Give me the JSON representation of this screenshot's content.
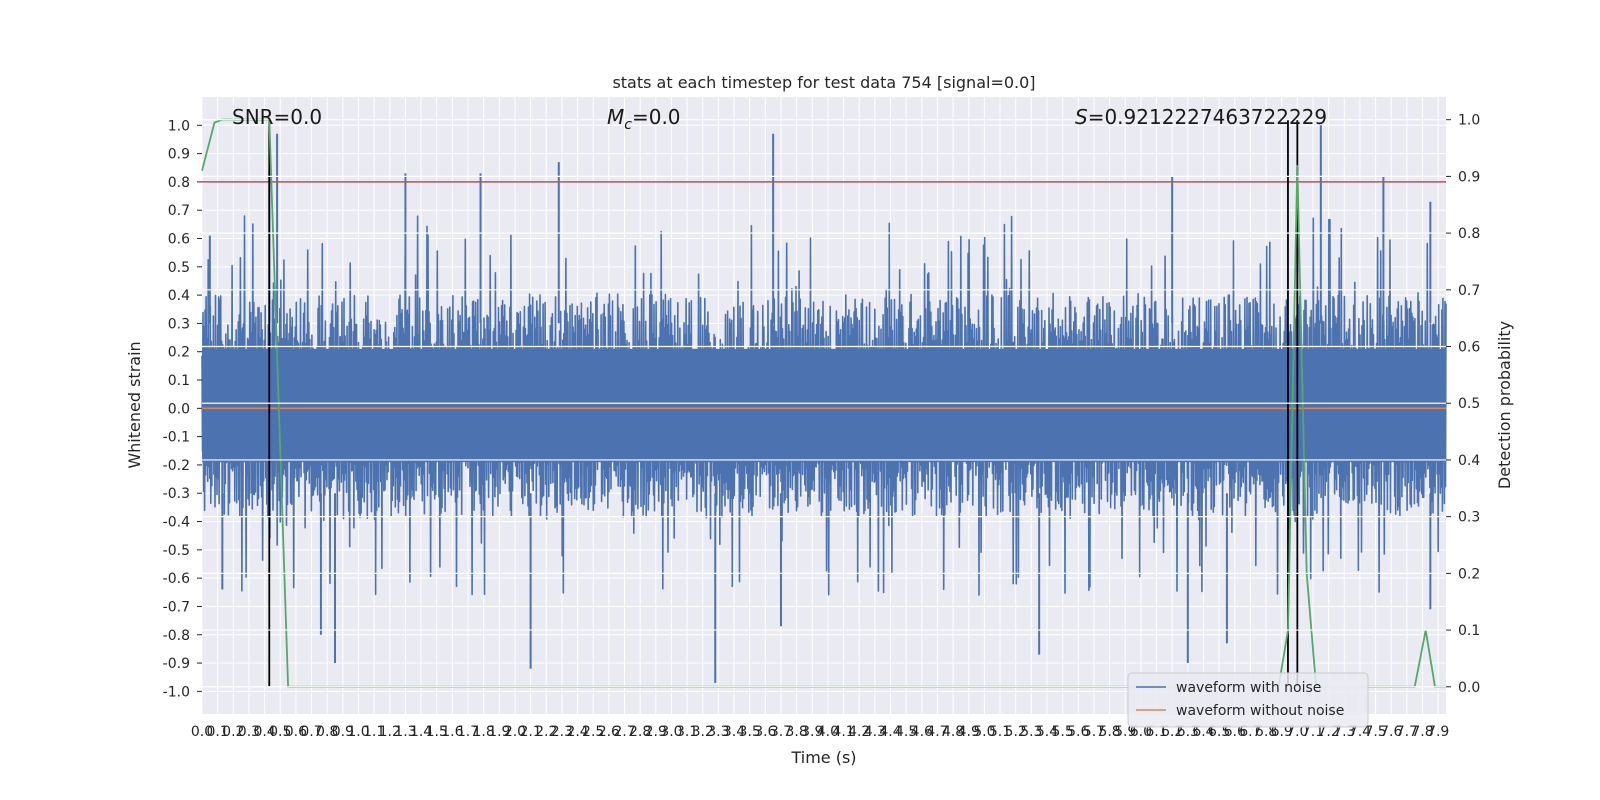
{
  "chart_data": {
    "type": "line",
    "title": "stats at each timestep for test data 754 [signal=0.0]",
    "xlabel": "Time (s)",
    "ylabel_left": "Whitened strain",
    "ylabel_right": "Detection probability",
    "xlim": [
      0.0,
      7.95
    ],
    "ylim_left": [
      -1.08,
      1.1
    ],
    "ylim_right": [
      -0.048,
      1.04
    ],
    "x_ticks": [
      "0.0",
      "0.1",
      "0.2",
      "0.3",
      "0.4",
      "0.5",
      "0.6",
      "0.7",
      "0.8",
      "0.9",
      "1.0",
      "1.1",
      "1.2",
      "1.3",
      "1.4",
      "1.5",
      "1.6",
      "1.7",
      "1.8",
      "1.9",
      "2.0",
      "2.1",
      "2.2",
      "2.3",
      "2.4",
      "2.5",
      "2.6",
      "2.7",
      "2.8",
      "2.9",
      "3.0",
      "3.1",
      "3.2",
      "3.3",
      "3.4",
      "3.5",
      "3.6",
      "3.7",
      "3.8",
      "3.9",
      "4.0",
      "4.1",
      "4.2",
      "4.3",
      "4.4",
      "4.5",
      "4.6",
      "4.7",
      "4.8",
      "4.9",
      "5.0",
      "5.1",
      "5.2",
      "5.3",
      "5.4",
      "5.5",
      "5.6",
      "5.7",
      "5.8",
      "5.9",
      "6.0",
      "6.1",
      "6.2",
      "6.3",
      "6.4",
      "6.5",
      "6.6",
      "6.7",
      "6.8",
      "6.9",
      "7.0",
      "7.1",
      "7.2",
      "7.3",
      "7.4",
      "7.5",
      "7.6",
      "7.7",
      "7.8",
      "7.9"
    ],
    "y_ticks_left": [
      "-1.0",
      "-0.9",
      "-0.8",
      "-0.7",
      "-0.6",
      "-0.5",
      "-0.4",
      "-0.3",
      "-0.2",
      "-0.1",
      "0.0",
      "0.1",
      "0.2",
      "0.3",
      "0.4",
      "0.5",
      "0.6",
      "0.7",
      "0.8",
      "0.9",
      "1.0"
    ],
    "y_ticks_right": [
      "0.0",
      "0.1",
      "0.2",
      "0.3",
      "0.4",
      "0.5",
      "0.6",
      "0.7",
      "0.8",
      "0.9",
      "1.0"
    ],
    "grid": true,
    "legend_position": "lower-right",
    "colors": {
      "background": "#eaeaf2",
      "grid": "#ffffff",
      "waveform_noise": "#4c72b0",
      "waveform_clean": "#dd8452",
      "detection": "#55a868",
      "threshold": "#c44e52",
      "markers": "#000000"
    },
    "annotations": {
      "snr": "SNR=0.0",
      "mc_symbol": "M",
      "mc_sub": "c",
      "mc_value": "=0.0",
      "s_symbol": "S",
      "s_value": "=0.9212227463722229"
    },
    "series": [
      {
        "name": "waveform with noise",
        "axis": "left",
        "style": "noise-band",
        "envelope_upper": [
          0.4,
          0.4,
          0.4,
          0.41,
          0.4,
          0.39,
          0.4,
          0.41,
          0.4,
          0.4,
          0.4
        ],
        "envelope_lower": [
          -0.38,
          -0.4,
          -0.38,
          -0.38,
          -0.39,
          -0.38,
          -0.38,
          -0.39,
          -0.38,
          -0.38,
          -0.38
        ],
        "peaks": [
          {
            "x": 0.05,
            "y": 0.61
          },
          {
            "x": 0.43,
            "y": 0.84
          },
          {
            "x": 0.48,
            "y": 0.97
          },
          {
            "x": 1.3,
            "y": 0.83
          },
          {
            "x": 1.78,
            "y": 0.83
          },
          {
            "x": 2.28,
            "y": 0.87
          },
          {
            "x": 3.65,
            "y": 0.97
          },
          {
            "x": 6.2,
            "y": 0.82
          },
          {
            "x": 7.0,
            "y": 0.85
          },
          {
            "x": 7.15,
            "y": 1.0
          },
          {
            "x": 7.55,
            "y": 0.82
          },
          {
            "x": 7.85,
            "y": 0.73
          },
          {
            "x": 0.13,
            "y": -0.64
          },
          {
            "x": 0.76,
            "y": -0.8
          },
          {
            "x": 0.85,
            "y": -0.9
          },
          {
            "x": 2.1,
            "y": -0.92
          },
          {
            "x": 3.28,
            "y": -0.97
          },
          {
            "x": 3.7,
            "y": -0.77
          },
          {
            "x": 5.35,
            "y": -0.87
          },
          {
            "x": 6.3,
            "y": -0.9
          },
          {
            "x": 6.55,
            "y": -0.83
          },
          {
            "x": 7.85,
            "y": -0.71
          }
        ]
      },
      {
        "name": "waveform without noise",
        "axis": "left",
        "x": [
          0.0,
          7.95
        ],
        "y": [
          0.0,
          0.0
        ]
      },
      {
        "axis": "right",
        "x": [
          0.0,
          0.08,
          0.13,
          0.43,
          0.55,
          6.88,
          6.94,
          7.0,
          7.06,
          7.12,
          7.25,
          7.45,
          7.55,
          7.75,
          7.82,
          7.88,
          7.95
        ],
        "y": [
          0.91,
          0.995,
          1.0,
          1.0,
          0.0,
          0.0,
          0.1,
          0.92,
          0.2,
          0.0,
          0.0,
          0.0,
          0.0,
          0.0,
          0.1,
          0.0,
          0.0
        ]
      }
    ],
    "threshold": {
      "axis": "left",
      "y": 0.8
    },
    "vertical_markers": [
      0.43,
      6.94,
      7.0
    ]
  }
}
